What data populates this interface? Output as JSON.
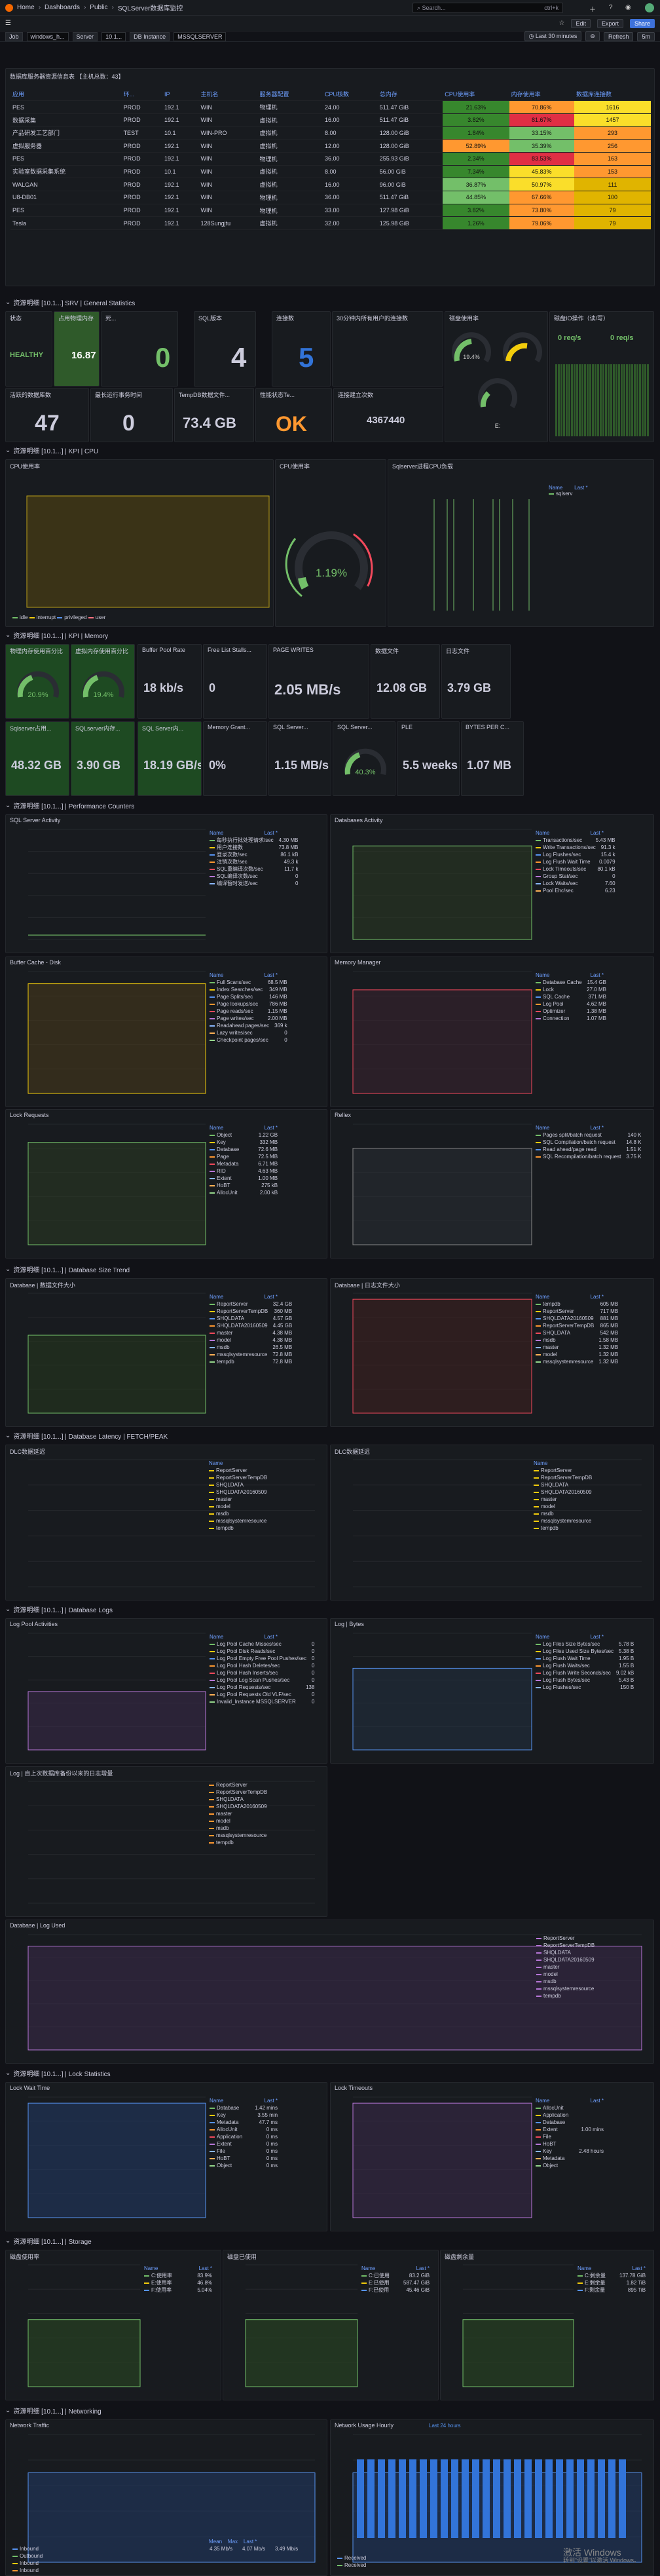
{
  "topbar": {
    "home": "Home",
    "dash": "Dashboards",
    "pub": "Public",
    "title": "SQLServer数据库监控",
    "search": "Search...",
    "kbd": "ctrl+k"
  },
  "toolbar": {
    "edit": "Edit",
    "export": "Export",
    "share": "Share",
    "time": "Last 30 minutes",
    "refresh": "Refresh",
    "interval": "5m"
  },
  "vars": [
    [
      "Job",
      "windows_h..."
    ],
    [
      "Server",
      "10.1..."
    ],
    [
      "DB Instance",
      "MSSQLSERVER"
    ]
  ],
  "table": {
    "title": "数据库服务器资源信息表 【主机总数：43】",
    "headers": [
      "应用",
      "环...",
      "IP",
      "主机名",
      "服务器配置",
      "CPU核数",
      "总内存",
      "CPU使用率",
      "内存使用率",
      "数据库连接数"
    ],
    "rows": [
      [
        "PES",
        "PROD",
        "192.1",
        "WIN",
        "物理机",
        "24.00",
        "511.47 GiB",
        "21.63%",
        "70.86%",
        "1616"
      ],
      [
        "数据采集",
        "PROD",
        "192.1",
        "WIN",
        "虚拟机",
        "16.00",
        "511.47 GiB",
        "3.82%",
        "81.67%",
        "1457"
      ],
      [
        "产品研发工艺部门",
        "TEST",
        "10.1",
        "WIN-PRO",
        "虚拟机",
        "8.00",
        "128.00 GiB",
        "1.84%",
        "33.15%",
        "293"
      ],
      [
        "虚拟服务器",
        "PROD",
        "192.1",
        "WIN",
        "虚拟机",
        "12.00",
        "128.00 GiB",
        "52.89%",
        "35.39%",
        "256"
      ],
      [
        "PES",
        "PROD",
        "192.1",
        "WIN",
        "物理机",
        "36.00",
        "255.93 GiB",
        "2.34%",
        "83.53%",
        "163"
      ],
      [
        "实验室数据采集系统",
        "PROD",
        "10.1",
        "WIN",
        "虚拟机",
        "8.00",
        "56.00 GiB",
        "7.34%",
        "45.83%",
        "153"
      ],
      [
        "WALGAN",
        "PROD",
        "192.1",
        "WIN",
        "虚拟机",
        "16.00",
        "96.00 GiB",
        "36.87%",
        "50.97%",
        "111"
      ],
      [
        "U8-DB01",
        "PROD",
        "192.1",
        "WIN",
        "物理机",
        "36.00",
        "511.47 GiB",
        "44.85%",
        "67.66%",
        "100"
      ],
      [
        "PES",
        "PROD",
        "192.1",
        "WIN",
        "物理机",
        "33.00",
        "127.98 GiB",
        "3.82%",
        "73.80%",
        "79"
      ],
      [
        "Tesla",
        "PROD",
        "192.1",
        "128Sungjtu",
        "虚拟机",
        "32.00",
        "125.98 GiB",
        "1.26%",
        "79.06%",
        "79"
      ]
    ]
  },
  "rows": {
    "gs": "资源明细 [10.1...] SRV | General Statistics",
    "cpu": "资源明细 [10.1...] | KPI | CPU",
    "mem": "资源明细 [10.1...] | KPI | Memory",
    "perf": "资源明细 [10.1...] | Performance Counters",
    "size": "资源明细 [10.1...] | Database Size Trend",
    "lat": "资源明细 [10.1...] | Database Latency | FETCH/PEAK",
    "logs": "资源明细 [10.1...] | Database Logs",
    "lock": "资源明细 [10.1...] | Lock Statistics",
    "stor": "资源明细 [10.1...] | Storage",
    "net": "资源明细 [10.1...] | Networking"
  },
  "gs": {
    "status_t": "状态",
    "status_v": "HEALTHY",
    "cpu_t": "占用物理内存",
    "cpu_v": "16.87 GB",
    "a_t": "死...",
    "a_v": "0",
    "b_t": "SQL版本",
    "b_v": "4",
    "c_t": "连接数",
    "c_v": "5",
    "d_t": "30分钟内所有用户的连接数",
    "e_t": "磁盘使用率",
    "f_t": "磁盘IO操作（读/写）",
    "f_v1": "0 req/s",
    "f_v2": "0 req/s",
    "g_t": "活跃的数据库数",
    "g_v": "47",
    "h_t": "最长运行事务时间",
    "h_v": "0",
    "i_t": "TempDB数据文件...",
    "i_v": "73.4 GB",
    "j_t": "性能状态Te...",
    "j_v": "OK",
    "k_t": "连接建立次数",
    "k_v": "4367440",
    "g1": "19.4%",
    "g2": "",
    "g3": "E:"
  },
  "cpu": {
    "t1": "CPU使用率",
    "t2": "CPU使用率",
    "t3": "Sqlserver进程CPU负载",
    "gauge": "1.19%",
    "lg": [
      "idle",
      "interrupt",
      "privileged",
      "user"
    ],
    "l3h": [
      "Name",
      "Last *"
    ],
    "l3": [
      [
        "sqlserv",
        ""
      ]
    ]
  },
  "memk": {
    "a_t": "物理内存使用百分比",
    "b_t": "虚拟内存使用百分比",
    "c_t": "Buffer Pool Rate",
    "c_v": "18 kb/s",
    "d_t": "Free List Stalls...",
    "d_v": "0",
    "e_t": "PAGE WRITES",
    "e_v": "2.05 MB/s",
    "f_t": "数据文件",
    "f_v": "12.08 GB",
    "g_t": "日志文件",
    "g_v": "3.79 GB",
    "h_t": "Sqlserver占用...",
    "h_v": "48.32 GB",
    "i_t": "SQLserver内存...",
    "i_v": "3.90 GB",
    "j_t": "SQL Server内...",
    "j_v": "18.19 GB/s",
    "k_t": "Memory Grant...",
    "k_v": "0%",
    "l_t": "SQL Server...",
    "l_v": "1.15 MB/s",
    "m_t": "SQL Server...",
    "m_v": "40.3%",
    "n_t": "PLE",
    "n_v": "5.5 weeks",
    "o_t": "BYTES PER C...",
    "o_v": "1.07 MB",
    "ga": "20.9%",
    "gb": "19.4%"
  },
  "perf": {
    "a_t": "SQL Server Activity",
    "b_t": "Databases Activity",
    "c_t": "Buffer Cache - Disk",
    "d_t": "Memory Manager",
    "e_t": "Lock Requests",
    "f_t": "Rellex",
    "a_l": [
      [
        "每秒执行批处理请求/sec",
        "4.30 MB"
      ],
      [
        "用户连接数",
        "73.8 MB"
      ],
      [
        "登录次数/sec",
        "86.1 kB"
      ],
      [
        "注销次数/sec",
        "49.3 k"
      ],
      [
        "SQL重编译次数/sec",
        "11.7 k"
      ],
      [
        "SQL编译次数/sec",
        "0"
      ],
      [
        "编译暂时发送/sec",
        "0"
      ]
    ],
    "b_l": [
      [
        "Transactions/sec",
        "5.43 MB"
      ],
      [
        "Write Transactions/sec",
        "91.3 k"
      ],
      [
        "Log Flushes/sec",
        "15.4 k"
      ],
      [
        "Log Flush Wait Time",
        "0.0079"
      ],
      [
        "Lock Timeouts/sec",
        "80.1 kB"
      ],
      [
        "Group Stat/sec",
        "0"
      ],
      [
        "Lock Waits/sec",
        "7.60"
      ],
      [
        "Pool Ehc/sec",
        "6.23"
      ]
    ],
    "c_l": [
      [
        "Full Scans/sec",
        "68.5 MB"
      ],
      [
        "Index Searches/sec",
        "349 MB"
      ],
      [
        "Page Splits/sec",
        "146 MB"
      ],
      [
        "Page lookups/sec",
        "786 MB"
      ],
      [
        "Page reads/sec",
        "1.15 MB"
      ],
      [
        "Page writes/sec",
        "2.00 MB"
      ],
      [
        "Readahead pages/sec",
        "369 k"
      ],
      [
        "Lazy writes/sec",
        "0"
      ],
      [
        "Checkpoint pages/sec",
        "0"
      ]
    ],
    "d_l": [
      [
        "Database Cache",
        "15.4 GB"
      ],
      [
        "Lock",
        "27.0 MB"
      ],
      [
        "SQL Cache",
        "371 MB"
      ],
      [
        "Log Pool",
        "4.62 MB"
      ],
      [
        "Optimizer",
        "1.38 MB"
      ],
      [
        "Connection",
        "1.07 MB"
      ]
    ],
    "e_l": [
      [
        "Object",
        "1.22 GB"
      ],
      [
        "Key",
        "332 MB"
      ],
      [
        "Database",
        "72.6 MB"
      ],
      [
        "Page",
        "72.5 MB"
      ],
      [
        "Metadata",
        "6.71 MB"
      ],
      [
        "RID",
        "4.63 MB"
      ],
      [
        "Extent",
        "1.00 MB"
      ],
      [
        "HoBT",
        "275 kB"
      ],
      [
        "AllocUnit",
        "2.00 kB"
      ]
    ],
    "f_l": [
      [
        "Pages split/batch request",
        "140 K"
      ],
      [
        "SQL Compilation/batch request",
        "14.8 K"
      ],
      [
        "Read ahead/page read",
        "1.51 K"
      ],
      [
        "SQL Recompilation/batch request",
        "3.75 K"
      ]
    ]
  },
  "size": {
    "a_t": "Database | 数据文件大小",
    "b_t": "Database | 日志文件大小",
    "a_l": [
      [
        "ReportServer",
        "32.4 GB"
      ],
      [
        "ReportServerTempDB",
        "360 MB"
      ],
      [
        "SHQLDATA",
        "4.57 GB"
      ],
      [
        "SHQLDATA20160509",
        "4.45 GB"
      ],
      [
        "master",
        "4.38 MB"
      ],
      [
        "model",
        "4.38 MB"
      ],
      [
        "msdb",
        "26.5 MB"
      ],
      [
        "mssqlsystemresource",
        "72.8 MB"
      ],
      [
        "tempdb",
        "72.8 MB"
      ]
    ],
    "b_l": [
      [
        "tempdb",
        "605 MB"
      ],
      [
        "ReportServer",
        "717 MB"
      ],
      [
        "SHQLDATA20160509",
        "881 MB"
      ],
      [
        "ReportServerTempDB",
        "865 MB"
      ],
      [
        "SHQLDATA",
        "542 MB"
      ],
      [
        "msdb",
        "1.58 MB"
      ],
      [
        "master",
        "1.32 MB"
      ],
      [
        "model",
        "1.32 MB"
      ],
      [
        "mssqlsystemresource",
        "1.32 MB"
      ]
    ]
  },
  "lat": {
    "a_t": "DLC数据延迟",
    "b_t": "DLC数据延迟",
    "dbs": [
      "ReportServer",
      "ReportServerTempDB",
      "SHQLDATA",
      "SHQLDATA20160509",
      "master",
      "model",
      "msdb",
      "mssqlsystemresource",
      "tempdb"
    ]
  },
  "logs": {
    "a_t": "Log Pool Activities",
    "b_t": "Log | Bytes",
    "c_t": "Log | 自上次数据库备份以来的日志增量",
    "d_t": "Database | Log Used",
    "a_l": [
      [
        "Log Pool Cache Misses/sec",
        "0"
      ],
      [
        "Log Pool Disk Reads/sec",
        "0"
      ],
      [
        "Log Pool Empty Free Pool Pushes/sec",
        "0"
      ],
      [
        "Log Pool Hash Deletes/sec",
        "0"
      ],
      [
        "Log Pool Hash Inserts/sec",
        "0"
      ],
      [
        "Log Pool Log Scan Pushes/sec",
        "0"
      ],
      [
        "Log Pool Requests/sec",
        "138"
      ],
      [
        "Log Pool Requests Old VLF/sec",
        "0"
      ],
      [
        "Invalid_Instance MSSQLSERVER",
        "0"
      ]
    ],
    "b_l": [
      [
        "Log Files Size Bytes/sec",
        "5.78 B"
      ],
      [
        "Log Files Used Size Bytes/sec",
        "5.38 B"
      ],
      [
        "Log Flush Wait Time",
        "1.95 B"
      ],
      [
        "Log Flush Waits/sec",
        "1.55 B"
      ],
      [
        "Log Flush Write Seconds/sec",
        "9.02 kB"
      ],
      [
        "Log Flush Bytes/sec",
        "5.43 B"
      ],
      [
        "Log Flushes/sec",
        "150 B"
      ]
    ]
  },
  "lock": {
    "a_t": "Lock Wait Time",
    "b_t": "Lock Timeouts",
    "a_l": [
      [
        "Database",
        "1.42 mins"
      ],
      [
        "Key",
        "3.55 min"
      ],
      [
        "Metadata",
        "47.7 ms"
      ],
      [
        "AllocUnit",
        "0 ms"
      ],
      [
        "Application",
        "0 ms"
      ],
      [
        "Extent",
        "0 ms"
      ],
      [
        "File",
        "0 ms"
      ],
      [
        "HoBT",
        "0 ms"
      ],
      [
        "Object",
        "0 ms"
      ]
    ],
    "b_l": [
      [
        "AllocUnit",
        ""
      ],
      [
        "Application",
        ""
      ],
      [
        "Database",
        ""
      ],
      [
        "Extent",
        "1.00 mins"
      ],
      [
        "File",
        ""
      ],
      [
        "HoBT",
        ""
      ],
      [
        "Key",
        "2.48 hours"
      ],
      [
        "Metadata",
        ""
      ],
      [
        "Object",
        ""
      ]
    ]
  },
  "stor": {
    "a_t": "磁盘使用率",
    "b_t": "磁盘已使用",
    "c_t": "磁盘剩余量",
    "a_l": [
      [
        "C:使用率",
        "83.9%"
      ],
      [
        "E:使用率",
        "46.8%"
      ],
      [
        "F:使用率",
        "5.04%"
      ]
    ],
    "b_l": [
      [
        "C:已使用",
        "83.2 GiB"
      ],
      [
        "E:已使用",
        "587.47 GiB"
      ],
      [
        "F:已使用",
        "45.46 GiB"
      ]
    ],
    "c_l": [
      [
        "C:剩余量",
        "137.78 GiB"
      ],
      [
        "E:剩余量",
        "1.82 TiB"
      ],
      [
        "F:剩余量",
        "895 TiB"
      ]
    ]
  },
  "net": {
    "a_t": "Network Traffic",
    "b_t": "Network Usage Hourly",
    "b_range": "Last 24 hours",
    "a_l": [
      [
        "Inbound",
        "4.35 Mb/s",
        "4.07 Mb/s",
        "3.49 Mb/s"
      ],
      [
        "Outbound",
        "",
        "",
        ""
      ],
      [
        "Inbound",
        "",
        "",
        ""
      ],
      [
        "Inbound",
        "",
        "",
        ""
      ]
    ],
    "a_h": [
      "Mean",
      "Max",
      "Last *"
    ],
    "b_l": [
      [
        "Received"
      ],
      [
        "Received"
      ]
    ]
  },
  "watermark": [
    "激活 Windows",
    "转到“设置”以激活 Windows。"
  ]
}
